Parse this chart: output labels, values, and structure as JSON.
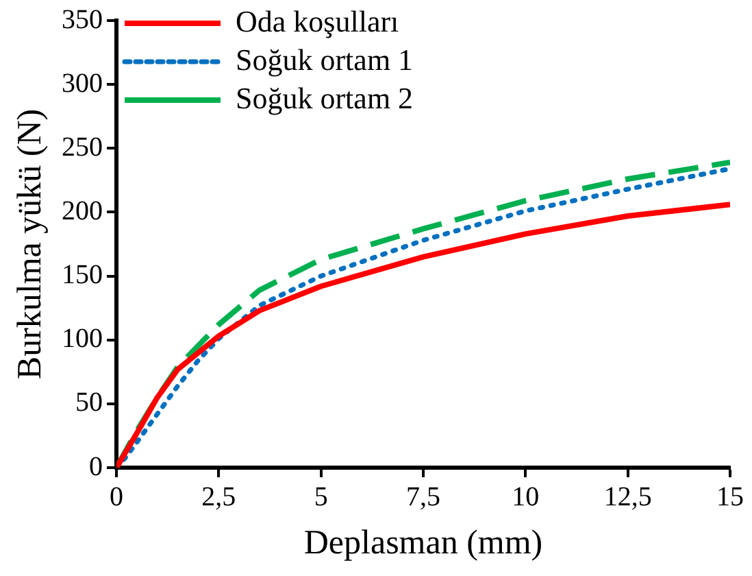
{
  "chart_data": {
    "type": "line",
    "xlabel": "Deplasman (mm)",
    "ylabel": "Burkulma yükü (N)",
    "xlim": [
      0,
      15
    ],
    "xticks": [
      0,
      {
        "value": 2.5,
        "label": "2,5"
      },
      5,
      {
        "value": 7.5,
        "label": "7,5"
      },
      10,
      {
        "value": 12.5,
        "label": "12,5"
      },
      15
    ],
    "ylim": [
      0,
      350
    ],
    "yticks": [
      0,
      50,
      100,
      150,
      200,
      250,
      300,
      350
    ],
    "grid": false,
    "legend": "top left",
    "marker": "none",
    "series": [
      {
        "name": "Oda koşulları",
        "color": "#ff0000",
        "line_style": "solid",
        "x": [
          0,
          0.5,
          1,
          1.5,
          2.5,
          3.5,
          5,
          7.5,
          10,
          12.5,
          15
        ],
        "values": [
          0,
          27,
          55,
          77,
          103,
          123,
          142,
          165,
          183,
          197,
          206
        ]
      },
      {
        "name": "Soğuk ortam 1",
        "color": "#0070c0",
        "line_style": "dotted",
        "x": [
          0,
          0.25,
          0.5,
          1,
          1.5,
          2,
          2.5,
          3.5,
          5,
          7.5,
          10,
          12.5,
          15
        ],
        "values": [
          0,
          9,
          20,
          42,
          64,
          84,
          101,
          127,
          150,
          178,
          201,
          218,
          234
        ]
      },
      {
        "name": "Soğuk ortam 2",
        "color": "#00b050",
        "line_style": "dashed",
        "x": [
          0,
          0.5,
          1,
          1.5,
          2.5,
          3.5,
          5,
          7.5,
          10,
          12.5,
          15
        ],
        "values": [
          0,
          29,
          55,
          79,
          112,
          139,
          163,
          187,
          209,
          226,
          239
        ]
      }
    ]
  }
}
